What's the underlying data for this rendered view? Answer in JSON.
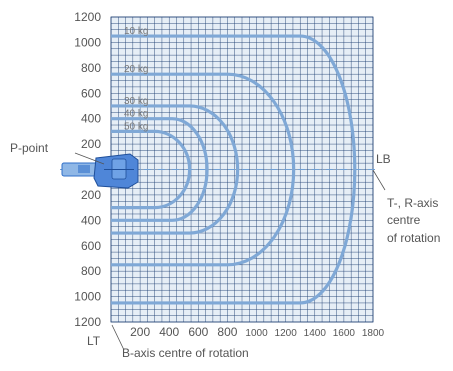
{
  "chart_data": {
    "type": "diagram",
    "x_ticks": [
      "200",
      "400",
      "600",
      "800",
      "1000",
      "1200",
      "1400",
      "1600",
      "1800"
    ],
    "y_ticks_upper": [
      "1200",
      "1000",
      "800",
      "600",
      "400",
      "200"
    ],
    "y_ticks_lower": [
      "200",
      "400",
      "600",
      "800",
      "1000",
      "1200"
    ],
    "x_range_mm": [
      0,
      1800
    ],
    "y_range_mm": [
      -1200,
      1200
    ],
    "grid": true,
    "load_curves": [
      {
        "label": "10 kg",
        "reach_x": 1300,
        "half_width": 1050,
        "outer_x": 1675
      },
      {
        "label": "20 kg",
        "reach_x": 800,
        "half_width": 750,
        "outer_x": 1255
      },
      {
        "label": "30 kg",
        "reach_x": 540,
        "half_width": 500,
        "outer_x": 870
      },
      {
        "label": "40 kg",
        "reach_x": 420,
        "half_width": 400,
        "outer_x": 660
      },
      {
        "label": "50 kg",
        "reach_x": 300,
        "half_width": 300,
        "outer_x": 540
      }
    ],
    "annotations": {
      "p_point": "P-point",
      "lb": "LB",
      "lt": "LT",
      "t_r_axis": [
        "T-, R-axis",
        "centre",
        "of rotation"
      ],
      "b_axis": "B-axis centre of rotation"
    },
    "colors": {
      "grid_fill": "#e6eef6",
      "grid_line": "#1f3f73",
      "curve": "#7fa8d6",
      "label": "#7a7a7a",
      "robot": "#2f6fc9"
    }
  }
}
